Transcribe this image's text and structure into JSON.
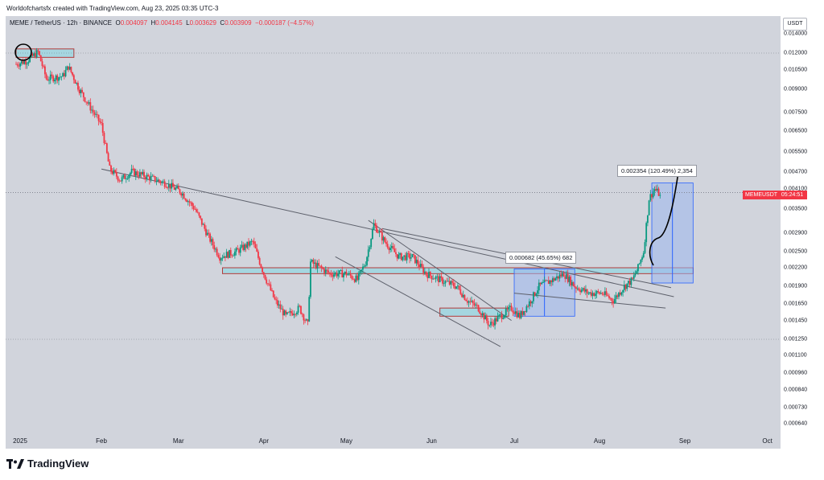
{
  "header": {
    "credit": "Worldofchartsfx created with TradingView.com, Aug 23, 2025 03:35 UTC-3"
  },
  "ohlc": {
    "symbol": "MEME / TetherUS · 12h · BINANCE",
    "open_key": "O",
    "open": "0.004097",
    "high_key": "H",
    "high": "0.004145",
    "low_key": "L",
    "low": "0.003629",
    "close_key": "C",
    "close": "0.003909",
    "change": "−0.000187 (−4.57%)"
  },
  "currency_button": "USDT",
  "price_tag": {
    "ticker": "MEMEUSDT",
    "countdown": "05:24:51"
  },
  "measures": [
    {
      "label": "0.002354 (120.49%) 2,354"
    },
    {
      "label": "0.000682 (45.65%) 682"
    }
  ],
  "brand": {
    "name": "TradingView"
  },
  "colors": {
    "up": "#089981",
    "down": "#f23645",
    "zone": "#9ed6e0",
    "measure": "#9cb6ee",
    "trendline": "#5d606b"
  },
  "chart_data": {
    "type": "candlestick",
    "title": "MEME / TetherUS · 12h · BINANCE",
    "y_scale": "log",
    "y_ticks": [
      "0.014000",
      "0.012000",
      "0.010500",
      "0.009000",
      "0.007500",
      "0.006500",
      "0.005500",
      "0.004700",
      "0.004100",
      "0.003500",
      "0.002900",
      "0.002500",
      "0.002200",
      "0.001900",
      "0.001650",
      "0.001450",
      "0.001250",
      "0.001100",
      "0.000960",
      "0.000840",
      "0.000730",
      "0.000640"
    ],
    "x_ticks": [
      "2025",
      "Feb",
      "Mar",
      "Apr",
      "May",
      "Jun",
      "Jul",
      "Aug",
      "Sep",
      "Oct"
    ],
    "last_price": 0.003909,
    "price_path": [
      [
        "2025-01-01",
        0.011
      ],
      [
        "2025-01-05",
        0.0113
      ],
      [
        "2025-01-09",
        0.0121
      ],
      [
        "2025-01-12",
        0.0098
      ],
      [
        "2025-01-18",
        0.01
      ],
      [
        "2025-01-20",
        0.0108
      ],
      [
        "2025-01-24",
        0.009
      ],
      [
        "2025-01-28",
        0.0078
      ],
      [
        "2025-02-01",
        0.0068
      ],
      [
        "2025-02-04",
        0.0048
      ],
      [
        "2025-02-08",
        0.0044
      ],
      [
        "2025-02-12",
        0.0047
      ],
      [
        "2025-02-18",
        0.0045
      ],
      [
        "2025-02-24",
        0.0043
      ],
      [
        "2025-03-02",
        0.004
      ],
      [
        "2025-03-07",
        0.0035
      ],
      [
        "2025-03-12",
        0.0028
      ],
      [
        "2025-03-16",
        0.0024
      ],
      [
        "2025-03-22",
        0.0025
      ],
      [
        "2025-03-28",
        0.0027
      ],
      [
        "2025-04-01",
        0.0021
      ],
      [
        "2025-04-05",
        0.0017
      ],
      [
        "2025-04-09",
        0.0015
      ],
      [
        "2025-04-14",
        0.0016
      ],
      [
        "2025-04-17",
        0.0014
      ],
      [
        "2025-04-18",
        0.0023
      ],
      [
        "2025-04-25",
        0.0021
      ],
      [
        "2025-05-01",
        0.0021
      ],
      [
        "2025-05-05",
        0.002
      ],
      [
        "2025-05-08",
        0.0023
      ],
      [
        "2025-05-11",
        0.0031
      ],
      [
        "2025-05-15",
        0.0027
      ],
      [
        "2025-05-20",
        0.0024
      ],
      [
        "2025-05-25",
        0.0024
      ],
      [
        "2025-05-30",
        0.0021
      ],
      [
        "2025-06-04",
        0.002
      ],
      [
        "2025-06-10",
        0.0019
      ],
      [
        "2025-06-14",
        0.0017
      ],
      [
        "2025-06-18",
        0.0016
      ],
      [
        "2025-06-22",
        0.0014
      ],
      [
        "2025-06-26",
        0.0015
      ],
      [
        "2025-06-30",
        0.0016
      ],
      [
        "2025-07-03",
        0.0015
      ],
      [
        "2025-07-07",
        0.0017
      ],
      [
        "2025-07-10",
        0.0019
      ],
      [
        "2025-07-15",
        0.002
      ],
      [
        "2025-07-19",
        0.0021
      ],
      [
        "2025-07-23",
        0.0019
      ],
      [
        "2025-07-28",
        0.0018
      ],
      [
        "2025-08-02",
        0.0018
      ],
      [
        "2025-08-06",
        0.0017
      ],
      [
        "2025-08-10",
        0.0019
      ],
      [
        "2025-08-13",
        0.002
      ],
      [
        "2025-08-15",
        0.0022
      ],
      [
        "2025-08-17",
        0.0025
      ],
      [
        "2025-08-19",
        0.0038
      ],
      [
        "2025-08-21",
        0.0041
      ],
      [
        "2025-08-23",
        0.003909
      ]
    ],
    "support_zones": [
      {
        "x_from": "2025-01-01",
        "x_to": "2025-01-22",
        "y_low": 0.0116,
        "y_high": 0.0124
      },
      {
        "x_from": "2025-03-17",
        "x_to": "2025-09-04",
        "y_low": 0.0021,
        "y_high": 0.0022
      },
      {
        "x_from": "2025-06-04",
        "x_to": "2025-06-29",
        "y_low": 0.0015,
        "y_high": 0.0016
      }
    ],
    "trendlines": [
      {
        "from": [
          "2025-02-01",
          0.0048
        ],
        "to": [
          "2025-08-28",
          0.00175
        ]
      },
      {
        "from": [
          "2025-05-09",
          0.0032
        ],
        "to": [
          "2025-06-30",
          0.00145
        ]
      },
      {
        "from": [
          "2025-04-27",
          0.0024
        ],
        "to": [
          "2025-06-26",
          0.00118
        ]
      },
      {
        "from": [
          "2025-05-14",
          0.003
        ],
        "to": [
          "2025-08-27",
          0.00188
        ]
      },
      {
        "from": [
          "2025-07-01",
          0.0018
        ],
        "to": [
          "2025-08-25",
          0.0016
        ]
      }
    ],
    "measurements": [
      {
        "x_from": "2025-07-01",
        "x_to": "2025-07-23",
        "y_from": 0.0015,
        "y_to": 0.00218,
        "delta": 0.000682,
        "pct": 45.65
      },
      {
        "x_from": "2025-08-20",
        "x_to": "2025-09-04",
        "y_from": 0.00195,
        "y_to": 0.0043,
        "delta": 0.002354,
        "pct": 120.49
      }
    ],
    "grid": false,
    "legend": "none"
  }
}
